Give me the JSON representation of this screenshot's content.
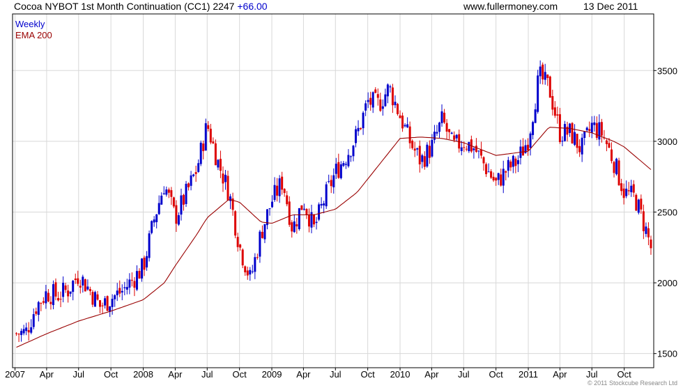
{
  "header": {
    "title": "Cocoa NYBOT 1st Month Continuation (CC1)",
    "last_price": "2247",
    "change": "+66.00",
    "site": "www.fullermoney.com",
    "date": "13 Dec 2011"
  },
  "legend": {
    "series1": "Weekly",
    "series2": "EMA 200"
  },
  "copyright": "© 2011 Stockcube Research Ltd",
  "colors": {
    "up": "#0000cc",
    "down": "#dd0000",
    "ema": "#990000",
    "grid": "#d8d8d8",
    "axis": "#000000"
  },
  "chart_data": {
    "type": "candlestick",
    "title": "Cocoa NYBOT 1st Month Continuation (CC1)",
    "interval": "Weekly",
    "ylim": [
      1500,
      3800
    ],
    "y_ticks": [
      "1500",
      "2000",
      "2500",
      "3000",
      "3500"
    ],
    "x_ticks": [
      "2007",
      "Apr",
      "Jul",
      "Oct",
      "2008",
      "Apr",
      "Jul",
      "Oct",
      "2009",
      "Apr",
      "Jul",
      "Oct",
      "2010",
      "Apr",
      "Jul",
      "Oct",
      "2011",
      "Apr",
      "Jul",
      "Oct"
    ],
    "x_start": "2007-01-05",
    "x_end": "2011-12-16",
    "close_anchors": [
      [
        "2007-01-01",
        1640
      ],
      [
        "2007-02-01",
        1650
      ],
      [
        "2007-03-01",
        1830
      ],
      [
        "2007-04-01",
        1930
      ],
      [
        "2007-05-01",
        1910
      ],
      [
        "2007-06-01",
        1950
      ],
      [
        "2007-07-01",
        2060
      ],
      [
        "2007-08-01",
        1950
      ],
      [
        "2007-09-01",
        1830
      ],
      [
        "2007-10-01",
        1890
      ],
      [
        "2007-11-01",
        1940
      ],
      [
        "2007-12-01",
        2020
      ],
      [
        "2008-01-01",
        2110
      ],
      [
        "2008-02-01",
        2450
      ],
      [
        "2008-03-01",
        2700
      ],
      [
        "2008-04-01",
        2460
      ],
      [
        "2008-05-01",
        2620
      ],
      [
        "2008-06-01",
        2800
      ],
      [
        "2008-07-01",
        3120
      ],
      [
        "2008-08-01",
        2850
      ],
      [
        "2008-09-01",
        2640
      ],
      [
        "2008-10-01",
        2260
      ],
      [
        "2008-11-01",
        2020
      ],
      [
        "2008-12-01",
        2350
      ],
      [
        "2009-01-01",
        2580
      ],
      [
        "2009-02-01",
        2720
      ],
      [
        "2009-03-01",
        2380
      ],
      [
        "2009-04-01",
        2580
      ],
      [
        "2009-05-01",
        2380
      ],
      [
        "2009-06-01",
        2600
      ],
      [
        "2009-07-01",
        2780
      ],
      [
        "2009-08-01",
        2900
      ],
      [
        "2009-09-01",
        3050
      ],
      [
        "2009-10-01",
        3280
      ],
      [
        "2009-11-01",
        3260
      ],
      [
        "2009-12-01",
        3380
      ],
      [
        "2010-01-01",
        3180
      ],
      [
        "2010-02-01",
        2980
      ],
      [
        "2010-03-01",
        2860
      ],
      [
        "2010-04-01",
        2960
      ],
      [
        "2010-05-01",
        3150
      ],
      [
        "2010-06-01",
        2960
      ],
      [
        "2010-07-01",
        3000
      ],
      [
        "2010-08-01",
        2950
      ],
      [
        "2010-09-01",
        2820
      ],
      [
        "2010-10-01",
        2700
      ],
      [
        "2010-11-01",
        2800
      ],
      [
        "2010-12-01",
        2860
      ],
      [
        "2011-01-01",
        3020
      ],
      [
        "2011-02-01",
        3460
      ],
      [
        "2011-03-01",
        3380
      ],
      [
        "2011-04-01",
        3060
      ],
      [
        "2011-05-01",
        3060
      ],
      [
        "2011-06-01",
        2940
      ],
      [
        "2011-07-01",
        3110
      ],
      [
        "2011-08-01",
        3050
      ],
      [
        "2011-09-01",
        2860
      ],
      [
        "2011-10-01",
        2640
      ],
      [
        "2011-11-01",
        2600
      ],
      [
        "2011-12-01",
        2380
      ],
      [
        "2011-12-16",
        2247
      ]
    ],
    "ema_anchors": [
      [
        "2007-01-01",
        1540
      ],
      [
        "2007-04-01",
        1640
      ],
      [
        "2007-07-01",
        1730
      ],
      [
        "2007-10-01",
        1800
      ],
      [
        "2008-01-01",
        1880
      ],
      [
        "2008-03-01",
        2000
      ],
      [
        "2008-04-01",
        2120
      ],
      [
        "2008-06-01",
        2340
      ],
      [
        "2008-07-01",
        2460
      ],
      [
        "2008-09-01",
        2590
      ],
      [
        "2008-10-01",
        2570
      ],
      [
        "2008-12-01",
        2430
      ],
      [
        "2009-01-01",
        2420
      ],
      [
        "2009-03-01",
        2480
      ],
      [
        "2009-05-01",
        2480
      ],
      [
        "2009-07-01",
        2520
      ],
      [
        "2009-09-01",
        2640
      ],
      [
        "2009-11-01",
        2830
      ],
      [
        "2010-01-01",
        3020
      ],
      [
        "2010-03-01",
        3030
      ],
      [
        "2010-05-01",
        3020
      ],
      [
        "2010-07-01",
        2990
      ],
      [
        "2010-10-01",
        2900
      ],
      [
        "2011-01-01",
        2930
      ],
      [
        "2011-03-01",
        3100
      ],
      [
        "2011-05-01",
        3090
      ],
      [
        "2011-07-01",
        3060
      ],
      [
        "2011-09-01",
        3000
      ],
      [
        "2011-10-01",
        2960
      ],
      [
        "2011-12-16",
        2800
      ]
    ]
  }
}
